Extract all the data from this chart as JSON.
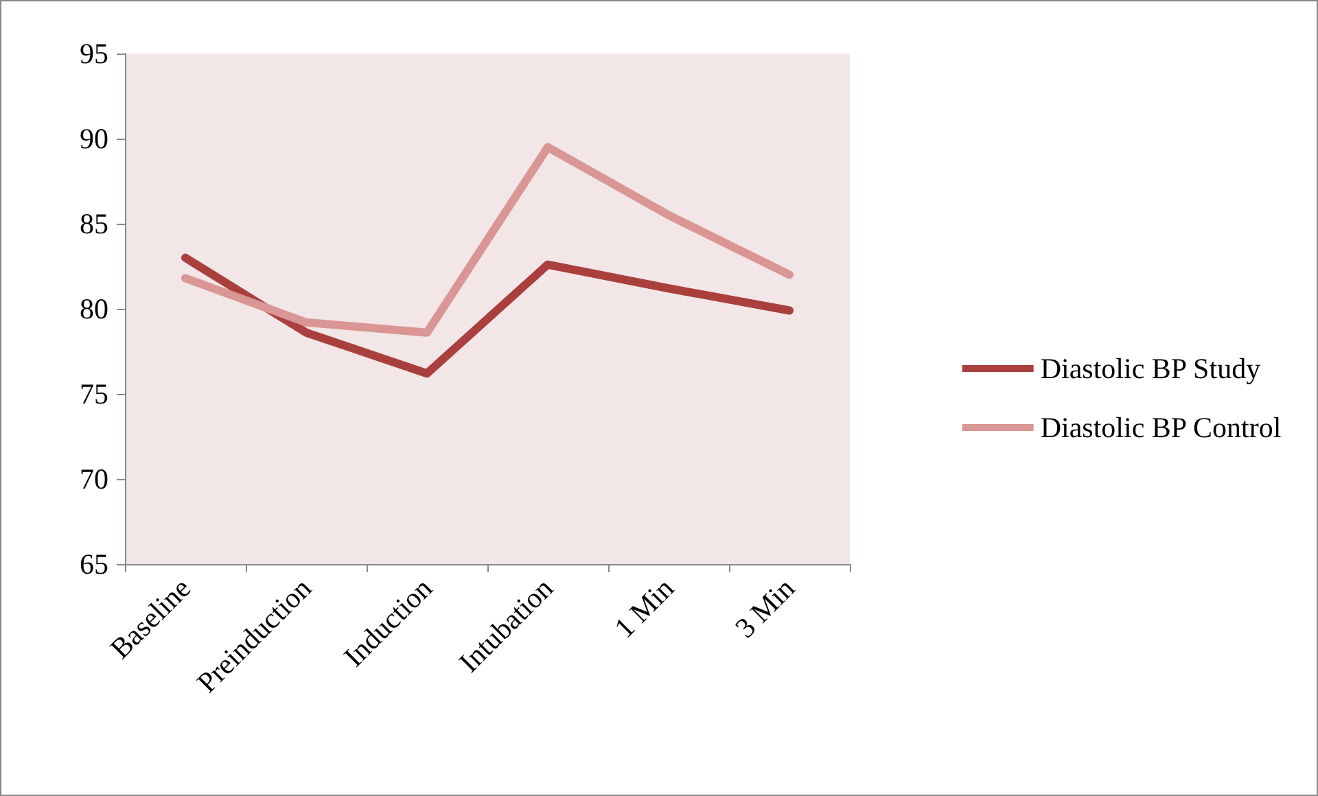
{
  "chart_data": {
    "type": "line",
    "categories": [
      "Baseline",
      "Preinduction",
      "Induction",
      "Intubation",
      "1 Min",
      "3 Min"
    ],
    "series": [
      {
        "name": "Diastolic BP Study",
        "color": "#a9403d",
        "values": [
          83.0,
          78.6,
          76.2,
          82.6,
          81.2,
          79.9
        ]
      },
      {
        "name": "Diastolic BP Control",
        "color": "#d99694",
        "values": [
          81.8,
          79.2,
          78.6,
          89.5,
          85.5,
          82.0
        ]
      }
    ],
    "ylim": [
      65,
      95
    ],
    "yticks": [
      65,
      70,
      75,
      80,
      85,
      90,
      95
    ],
    "grid": false,
    "legend": "right",
    "marker": "none",
    "line_style": "solid"
  }
}
